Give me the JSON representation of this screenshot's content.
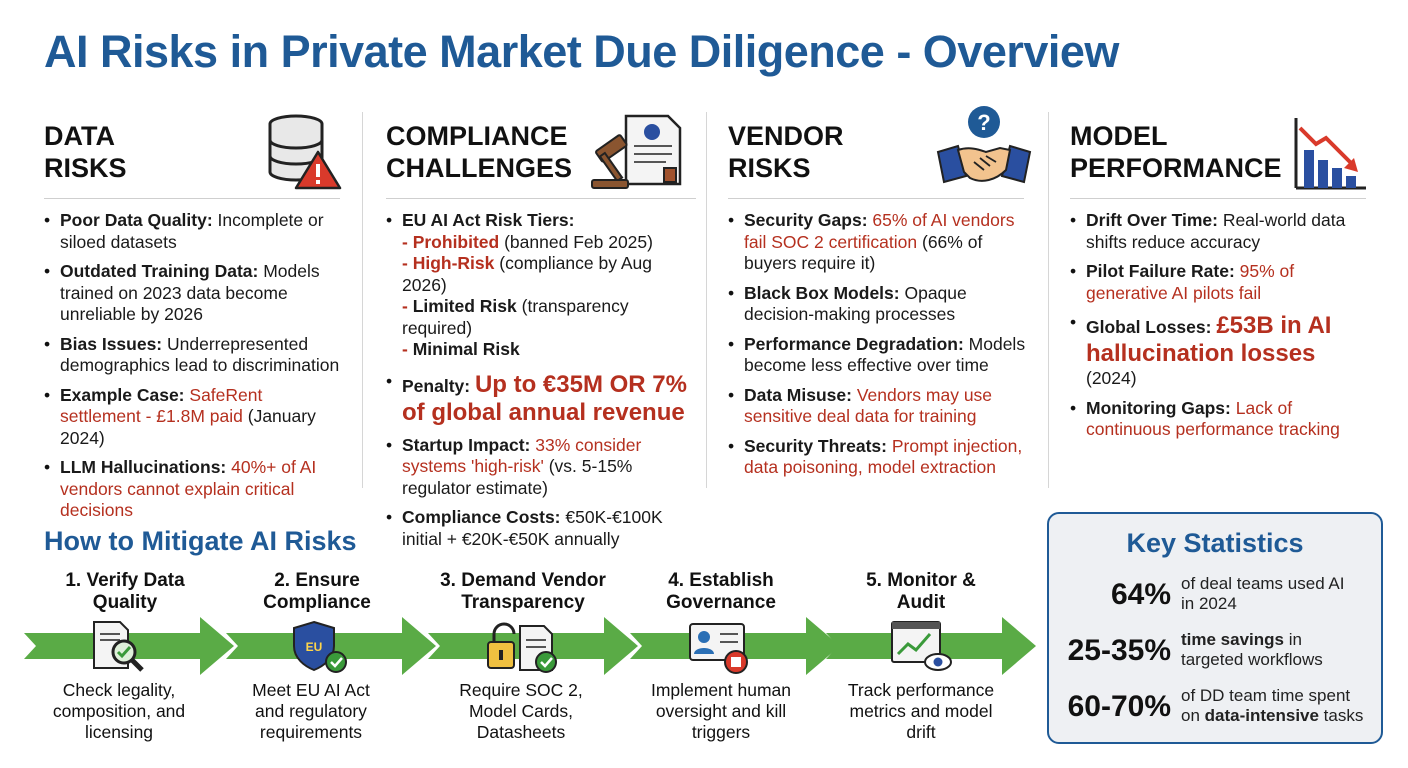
{
  "title": "AI Risks in Private Market Due Diligence - Overview",
  "colors": {
    "title_blue": "#1f5a96",
    "accent_red": "#b5301f",
    "arrow_green": "#5aab46"
  },
  "columns": [
    {
      "heading_line1": "DATA",
      "heading_line2": "RISKS",
      "icon": "database-warning-icon",
      "items": [
        {
          "label": "Poor Data Quality:",
          "text": "Incomplete or siloed datasets"
        },
        {
          "label": "Outdated Training Data:",
          "text": "Models trained on 2023 data become unreliable by 2026"
        },
        {
          "label": "Bias Issues:",
          "text": "Underrepresented demographics lead to discrimination"
        },
        {
          "label": "Example Case:",
          "highlight": "SafeRent settlement - £1.8M paid",
          "text": "(January 2024)"
        },
        {
          "label": "LLM Hallucinations:",
          "highlight": "40%+ of AI vendors cannot explain critical decisions"
        }
      ]
    },
    {
      "heading_line1": "COMPLIANCE",
      "heading_line2": "CHALLENGES",
      "icon": "gavel-document-icon",
      "tiers_label": "EU AI Act Risk Tiers:",
      "tiers": [
        {
          "name": "Prohibited",
          "note": "(banned Feb 2025)"
        },
        {
          "name": "High-Risk",
          "note": "(compliance by Aug 2026)"
        },
        {
          "name": "Limited Risk",
          "note": "(transparency required)"
        },
        {
          "name": "Minimal Risk",
          "note": ""
        }
      ],
      "penalty_label": "Penalty:",
      "penalty_value": "Up to €35M OR 7% of global annual revenue",
      "startup_label": "Startup Impact:",
      "startup_highlight": "33% consider systems 'high-risk'",
      "startup_text": "(vs. 5-15% regulator estimate)",
      "costs_label": "Compliance Costs:",
      "costs_text": "€50K-€100K initial + €20K-€50K annually"
    },
    {
      "heading_line1": "VENDOR",
      "heading_line2": "RISKS",
      "icon": "handshake-question-icon",
      "items": [
        {
          "label": "Security Gaps:",
          "highlight": "65% of AI vendors fail SOC 2 certification",
          "text": "(66% of buyers require it)"
        },
        {
          "label": "Black Box Models:",
          "text": "Opaque decision-making processes"
        },
        {
          "label": "Performance Degradation:",
          "text": "Models become less effective over time"
        },
        {
          "label": "Data Misuse:",
          "highlight": "Vendors may use sensitive deal data for training"
        },
        {
          "label": "Security Threats:",
          "highlight": "Prompt injection, data poisoning, model extraction"
        }
      ]
    },
    {
      "heading_line1": "MODEL",
      "heading_line2": "PERFORMANCE",
      "icon": "declining-chart-icon",
      "items": [
        {
          "label": "Drift Over Time:",
          "text": "Real-world data shifts reduce accuracy"
        },
        {
          "label": "Pilot Failure Rate:",
          "highlight": "95% of generative AI pilots fail"
        },
        {
          "label": "Global Losses:",
          "big": "£53B in AI hallucination losses",
          "text": "(2024)"
        },
        {
          "label": "Monitoring Gaps:",
          "highlight": "Lack of continuous performance tracking"
        }
      ]
    }
  ],
  "mitigation": {
    "title": "How to Mitigate AI Risks",
    "steps": [
      {
        "title_line1": "1. Verify Data",
        "title_line2": "Quality",
        "icon": "document-magnifier-icon",
        "desc_line1": "Check legality,",
        "desc_line2": "composition, and",
        "desc_line3": "licensing"
      },
      {
        "title_line1": "2. Ensure",
        "title_line2": "Compliance",
        "icon": "eu-shield-icon",
        "badge": "EU",
        "desc_line1": "Meet EU AI Act",
        "desc_line2": "and regulatory",
        "desc_line3": "requirements"
      },
      {
        "title_line1": "3. Demand Vendor",
        "title_line2": "Transparency",
        "icon": "unlocked-documents-icon",
        "desc_line1": "Require SOC 2,",
        "desc_line2": "Model Cards,",
        "desc_line3": "Datasheets"
      },
      {
        "title_line1": "4. Establish",
        "title_line2": "Governance",
        "icon": "id-card-stop-icon",
        "desc_line1": "Implement human",
        "desc_line2": "oversight and kill",
        "desc_line3": "triggers"
      },
      {
        "title_line1": "5. Monitor &",
        "title_line2": "Audit",
        "icon": "monitor-eye-icon",
        "desc_line1": "Track performance",
        "desc_line2": "metrics and model",
        "desc_line3": "drift"
      }
    ]
  },
  "key_stats": {
    "title": "Key Statistics",
    "items": [
      {
        "value": "64%",
        "text_line1": "of deal teams used AI",
        "text_line2": "in 2024"
      },
      {
        "value": "25-35%",
        "text_bold": "time savings",
        "text_rest": " in",
        "text_line2": "targeted workflows"
      },
      {
        "value": "60-70%",
        "text_line1": "of DD team time spent",
        "text_line2_prefix": "on ",
        "text_line2_bold": "data-intensive",
        "text_line2_suffix": " tasks"
      }
    ]
  }
}
